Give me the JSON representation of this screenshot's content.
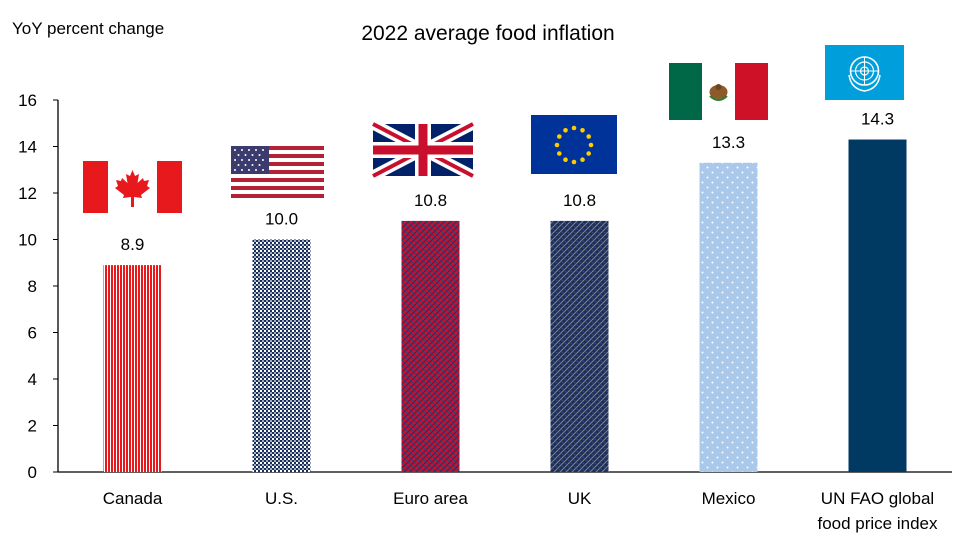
{
  "chart_data": {
    "type": "bar",
    "title": "2022 average food inflation",
    "ylabel": "YoY percent change",
    "xlabel": "",
    "ylim": [
      0,
      16
    ],
    "yticks": [
      0,
      2,
      4,
      6,
      8,
      10,
      12,
      14,
      16
    ],
    "grid": false,
    "legend": "none",
    "categories": [
      [
        "Canada"
      ],
      [
        "U.S."
      ],
      [
        "Euro area"
      ],
      [
        "UK"
      ],
      [
        "Mexico"
      ],
      [
        "UN FAO global",
        "food price index"
      ]
    ],
    "values": [
      8.9,
      10.0,
      10.8,
      10.8,
      13.3,
      14.3
    ],
    "value_labels": [
      "8.9",
      "10.0",
      "10.8",
      "10.8",
      "13.3",
      "14.3"
    ],
    "bar_styles": [
      {
        "fill": "#e8191c",
        "pattern": "red-stripes",
        "flag": "canada-flag"
      },
      {
        "fill": "#1b2f5e",
        "pattern": "navy-checker",
        "flag": "usa-flag"
      },
      {
        "fill": "#c8102e",
        "pattern": "red-navy-weave",
        "flag": "union-jack-flag"
      },
      {
        "fill": "#1b2f5e",
        "pattern": "navy-gold-weave",
        "flag": "eu-flag"
      },
      {
        "fill": "#a9c8ea",
        "pattern": "lightblue-dots",
        "flag": "mexico-flag"
      },
      {
        "fill": "#003a63",
        "pattern": "solid",
        "flag": "un-flag"
      }
    ]
  }
}
